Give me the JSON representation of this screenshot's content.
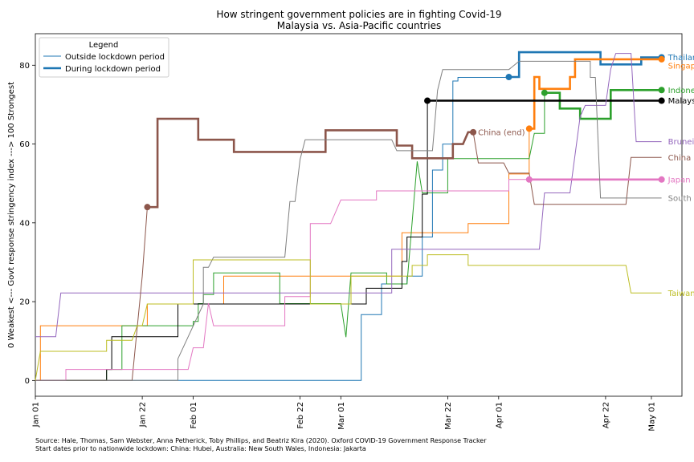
{
  "chart_data": {
    "type": "line",
    "title": "How stringent government policies are in fighting Covid-19",
    "subtitle": "Malaysia vs. Asia-Pacific countries",
    "ylabel": "0 Weakest <--- Govt response stringency index ---> 100 Strongest",
    "xlabel": "",
    "xlim": [
      "2020-01-01",
      "2020-05-07"
    ],
    "ylim": [
      -4,
      88
    ],
    "x_ticks": [
      {
        "date": "2020-01-01",
        "label": "Jan 01"
      },
      {
        "date": "2020-01-22",
        "label": "Jan 22"
      },
      {
        "date": "2020-02-01",
        "label": "Feb 01"
      },
      {
        "date": "2020-02-22",
        "label": "Feb 22"
      },
      {
        "date": "2020-03-01",
        "label": "Mar 01"
      },
      {
        "date": "2020-03-22",
        "label": "Mar 22"
      },
      {
        "date": "2020-04-01",
        "label": "Apr 01"
      },
      {
        "date": "2020-04-22",
        "label": "Apr 22"
      },
      {
        "date": "2020-05-01",
        "label": "May 01"
      }
    ],
    "y_ticks": [
      0,
      20,
      40,
      60,
      80
    ],
    "grid": false,
    "legend": {
      "title": "Legend",
      "position": "top-left",
      "entries": [
        {
          "label": "Outside lockdown period",
          "style": "thin"
        },
        {
          "label": "During lockdown period",
          "style": "thick"
        }
      ]
    },
    "series": [
      {
        "name": "Thailand",
        "color": "#1f77b4",
        "lockdown_start": "2020-04-03",
        "label_dy": 0,
        "points": [
          [
            "2020-01-01",
            0
          ],
          [
            "2020-03-05",
            0
          ],
          [
            "2020-03-05",
            16.7
          ],
          [
            "2020-03-09",
            16.7
          ],
          [
            "2020-03-09",
            24.5
          ],
          [
            "2020-03-14",
            24.5
          ],
          [
            "2020-03-14",
            26.5
          ],
          [
            "2020-03-17",
            26.5
          ],
          [
            "2020-03-17",
            36.4
          ],
          [
            "2020-03-19",
            36.4
          ],
          [
            "2020-03-19",
            53.4
          ],
          [
            "2020-03-21",
            53.4
          ],
          [
            "2020-03-21",
            60
          ],
          [
            "2020-03-23",
            60
          ],
          [
            "2020-03-23",
            76
          ],
          [
            "2020-03-24",
            76
          ],
          [
            "2020-03-24",
            76.9
          ],
          [
            "2020-04-03",
            76.9
          ],
          [
            "2020-04-03",
            77
          ],
          [
            "2020-04-05",
            77
          ],
          [
            "2020-04-05",
            83.3
          ],
          [
            "2020-04-21",
            83.3
          ],
          [
            "2020-04-21",
            80.2
          ],
          [
            "2020-04-29",
            80.2
          ],
          [
            "2020-04-29",
            82
          ],
          [
            "2020-05-03",
            82
          ]
        ]
      },
      {
        "name": "Singapore",
        "color": "#ff7f0e",
        "lockdown_start": "2020-04-07",
        "label_dy": 8,
        "points": [
          [
            "2020-01-01",
            0
          ],
          [
            "2020-01-02",
            0
          ],
          [
            "2020-01-02",
            13.9
          ],
          [
            "2020-01-23",
            13.9
          ],
          [
            "2020-01-23",
            19.4
          ],
          [
            "2020-02-07",
            19.4
          ],
          [
            "2020-02-07",
            26.5
          ],
          [
            "2020-03-13",
            26.5
          ],
          [
            "2020-03-13",
            37.5
          ],
          [
            "2020-03-26",
            37.5
          ],
          [
            "2020-03-26",
            39.8
          ],
          [
            "2020-04-03",
            39.8
          ],
          [
            "2020-04-03",
            52.4
          ],
          [
            "2020-04-07",
            52.4
          ],
          [
            "2020-04-07",
            63.9
          ],
          [
            "2020-04-08",
            63.9
          ],
          [
            "2020-04-08",
            77
          ],
          [
            "2020-04-09",
            77
          ],
          [
            "2020-04-09",
            74
          ],
          [
            "2020-04-15",
            74
          ],
          [
            "2020-04-15",
            77
          ],
          [
            "2020-04-16",
            77
          ],
          [
            "2020-04-16",
            81.5
          ],
          [
            "2020-05-03",
            81.5
          ]
        ]
      },
      {
        "name": "Indonesia",
        "color": "#2ca02c",
        "lockdown_start": "2020-04-10",
        "label_dy": 0,
        "points": [
          [
            "2020-01-01",
            0
          ],
          [
            "2020-01-15",
            0
          ],
          [
            "2020-01-15",
            2.8
          ],
          [
            "2020-01-18",
            2.8
          ],
          [
            "2020-01-18",
            13.9
          ],
          [
            "2020-02-01",
            13.9
          ],
          [
            "2020-02-01",
            15
          ],
          [
            "2020-02-02",
            15
          ],
          [
            "2020-02-02",
            19.5
          ],
          [
            "2020-02-03",
            19.5
          ],
          [
            "2020-02-03",
            21.8
          ],
          [
            "2020-02-05",
            21.8
          ],
          [
            "2020-02-05",
            27.3
          ],
          [
            "2020-02-18",
            27.3
          ],
          [
            "2020-02-18",
            19.5
          ],
          [
            "2020-03-01",
            19.5
          ],
          [
            "2020-03-02",
            11
          ],
          [
            "2020-03-03",
            27.3
          ],
          [
            "2020-03-10",
            27.3
          ],
          [
            "2020-03-10",
            24.5
          ],
          [
            "2020-03-14",
            24.5
          ],
          [
            "2020-03-16",
            55.6
          ],
          [
            "2020-03-17",
            47.6
          ],
          [
            "2020-03-22",
            47.6
          ],
          [
            "2020-03-22",
            56.3
          ],
          [
            "2020-04-07",
            56.3
          ],
          [
            "2020-04-08",
            62.7
          ],
          [
            "2020-04-10",
            62.7
          ],
          [
            "2020-04-10",
            73
          ],
          [
            "2020-04-13",
            73
          ],
          [
            "2020-04-13",
            69
          ],
          [
            "2020-04-17",
            69
          ],
          [
            "2020-04-17",
            66.4
          ],
          [
            "2020-04-23",
            66.4
          ],
          [
            "2020-04-23",
            73.7
          ],
          [
            "2020-05-03",
            73.7
          ]
        ]
      },
      {
        "name": "Malaysia",
        "color": "#000000",
        "lockdown_start": "2020-03-18",
        "label_dy": 0,
        "points": [
          [
            "2020-01-01",
            0
          ],
          [
            "2020-01-15",
            0
          ],
          [
            "2020-01-15",
            2.8
          ],
          [
            "2020-01-16",
            2.8
          ],
          [
            "2020-01-16",
            11.1
          ],
          [
            "2020-01-29",
            11.1
          ],
          [
            "2020-01-29",
            19.4
          ],
          [
            "2020-03-06",
            19.4
          ],
          [
            "2020-03-06",
            23.4
          ],
          [
            "2020-03-13",
            23.4
          ],
          [
            "2020-03-13",
            30.2
          ],
          [
            "2020-03-14",
            30.2
          ],
          [
            "2020-03-14",
            36.4
          ],
          [
            "2020-03-17",
            36.4
          ],
          [
            "2020-03-17",
            47.3
          ],
          [
            "2020-03-18",
            47.3
          ],
          [
            "2020-03-18",
            71
          ],
          [
            "2020-05-03",
            71
          ]
        ]
      },
      {
        "name": "Brunei",
        "color": "#9467bd",
        "label_dy": 0,
        "points": [
          [
            "2020-01-01",
            11.1
          ],
          [
            "2020-01-05",
            11.1
          ],
          [
            "2020-01-06",
            22.2
          ],
          [
            "2020-03-11",
            22.2
          ],
          [
            "2020-03-11",
            33.3
          ],
          [
            "2020-04-09",
            33.3
          ],
          [
            "2020-04-10",
            47.6
          ],
          [
            "2020-04-15",
            47.6
          ],
          [
            "2020-04-17",
            66.9
          ],
          [
            "2020-04-18",
            69.8
          ],
          [
            "2020-04-22",
            69.8
          ],
          [
            "2020-04-23",
            79
          ],
          [
            "2020-04-24",
            83
          ],
          [
            "2020-04-27",
            83
          ],
          [
            "2020-04-28",
            60.6
          ],
          [
            "2020-05-03",
            60.6
          ]
        ]
      },
      {
        "name": "China",
        "color": "#8c564b",
        "lockdown_start": "2020-01-23",
        "lockdown_end": "2020-03-27",
        "end_label": "China (end)",
        "label_dy": 0,
        "points": [
          [
            "2020-01-01",
            0
          ],
          [
            "2020-01-20",
            0
          ],
          [
            "2020-01-22",
            26.5
          ],
          [
            "2020-01-23",
            44
          ],
          [
            "2020-01-25",
            44
          ],
          [
            "2020-01-25",
            66.4
          ],
          [
            "2020-02-02",
            66.4
          ],
          [
            "2020-02-02",
            61.1
          ],
          [
            "2020-02-09",
            61.1
          ],
          [
            "2020-02-09",
            58
          ],
          [
            "2020-02-27",
            58
          ],
          [
            "2020-02-27",
            63.5
          ],
          [
            "2020-03-12",
            63.5
          ],
          [
            "2020-03-12",
            59.6
          ],
          [
            "2020-03-15",
            59.6
          ],
          [
            "2020-03-15",
            56.4
          ],
          [
            "2020-03-23",
            56.4
          ],
          [
            "2020-03-23",
            60
          ],
          [
            "2020-03-25",
            60
          ],
          [
            "2020-03-26",
            63
          ],
          [
            "2020-03-27",
            63
          ],
          [
            "2020-03-28",
            55.2
          ],
          [
            "2020-04-02",
            55.2
          ],
          [
            "2020-04-03",
            52.6
          ],
          [
            "2020-04-07",
            52.6
          ],
          [
            "2020-04-08",
            44.7
          ],
          [
            "2020-04-26",
            44.7
          ],
          [
            "2020-04-27",
            56.6
          ],
          [
            "2020-05-03",
            56.6
          ]
        ]
      },
      {
        "name": "Japan",
        "color": "#e377c2",
        "lockdown_start": "2020-04-07",
        "label_dy": 0,
        "points": [
          [
            "2020-01-01",
            0
          ],
          [
            "2020-01-07",
            0
          ],
          [
            "2020-01-07",
            2.8
          ],
          [
            "2020-01-31",
            2.8
          ],
          [
            "2020-02-01",
            8.3
          ],
          [
            "2020-02-03",
            8.3
          ],
          [
            "2020-02-04",
            19.6
          ],
          [
            "2020-02-05",
            13.9
          ],
          [
            "2020-02-19",
            13.9
          ],
          [
            "2020-02-19",
            21.3
          ],
          [
            "2020-02-24",
            21.3
          ],
          [
            "2020-02-24",
            39.8
          ],
          [
            "2020-02-28",
            39.8
          ],
          [
            "2020-03-01",
            45.8
          ],
          [
            "2020-03-08",
            45.8
          ],
          [
            "2020-03-08",
            48.1
          ],
          [
            "2020-04-03",
            48.1
          ],
          [
            "2020-04-03",
            51
          ],
          [
            "2020-05-03",
            51
          ]
        ]
      },
      {
        "name": "South Korea",
        "color": "#7f7f7f",
        "label_dy": 0,
        "points": [
          [
            "2020-01-01",
            0
          ],
          [
            "2020-01-29",
            0
          ],
          [
            "2020-01-29",
            5.5
          ],
          [
            "2020-02-03",
            19.4
          ],
          [
            "2020-02-03",
            28.7
          ],
          [
            "2020-02-04",
            28.7
          ],
          [
            "2020-02-05",
            31.3
          ],
          [
            "2020-02-19",
            31.3
          ],
          [
            "2020-02-20",
            45.4
          ],
          [
            "2020-02-21",
            45.4
          ],
          [
            "2020-02-22",
            56.1
          ],
          [
            "2020-02-23",
            61.1
          ],
          [
            "2020-03-11",
            61.1
          ],
          [
            "2020-03-12",
            58.3
          ],
          [
            "2020-03-19",
            58.3
          ],
          [
            "2020-03-20",
            73.6
          ],
          [
            "2020-03-21",
            78.9
          ],
          [
            "2020-04-03",
            78.9
          ],
          [
            "2020-04-05",
            81
          ],
          [
            "2020-04-19",
            81
          ],
          [
            "2020-04-19",
            76.9
          ],
          [
            "2020-04-20",
            76.9
          ],
          [
            "2020-04-21",
            46.3
          ],
          [
            "2020-05-03",
            46.3
          ]
        ]
      },
      {
        "name": "Taiwan",
        "color": "#bcbd22",
        "label_dy": 0,
        "points": [
          [
            "2020-01-01",
            0
          ],
          [
            "2020-01-02",
            7.4
          ],
          [
            "2020-01-15",
            7.4
          ],
          [
            "2020-01-15",
            10.2
          ],
          [
            "2020-01-20",
            10.2
          ],
          [
            "2020-01-21",
            13.9
          ],
          [
            "2020-01-22",
            13.9
          ],
          [
            "2020-01-23",
            19.4
          ],
          [
            "2020-02-01",
            19.4
          ],
          [
            "2020-02-01",
            30.6
          ],
          [
            "2020-02-24",
            30.6
          ],
          [
            "2020-02-24",
            19.4
          ],
          [
            "2020-03-03",
            19.4
          ],
          [
            "2020-03-03",
            26.5
          ],
          [
            "2020-03-15",
            26.5
          ],
          [
            "2020-03-15",
            29.2
          ],
          [
            "2020-03-18",
            29.2
          ],
          [
            "2020-03-18",
            31.9
          ],
          [
            "2020-03-26",
            31.9
          ],
          [
            "2020-03-26",
            29.2
          ],
          [
            "2020-04-26",
            29.2
          ],
          [
            "2020-04-27",
            22.2
          ],
          [
            "2020-05-03",
            22.2
          ]
        ]
      }
    ]
  },
  "source_line1": "Source: Hale, Thomas, Sam Webster, Anna Petherick, Toby Phillips, and Beatriz Kira (2020). Oxford COVID-19 Government Response Tracker",
  "source_line2": "Start dates prior to nationwide lockdown: China: Hubei, Australia: New South Wales, Indonesia: Jakarta"
}
